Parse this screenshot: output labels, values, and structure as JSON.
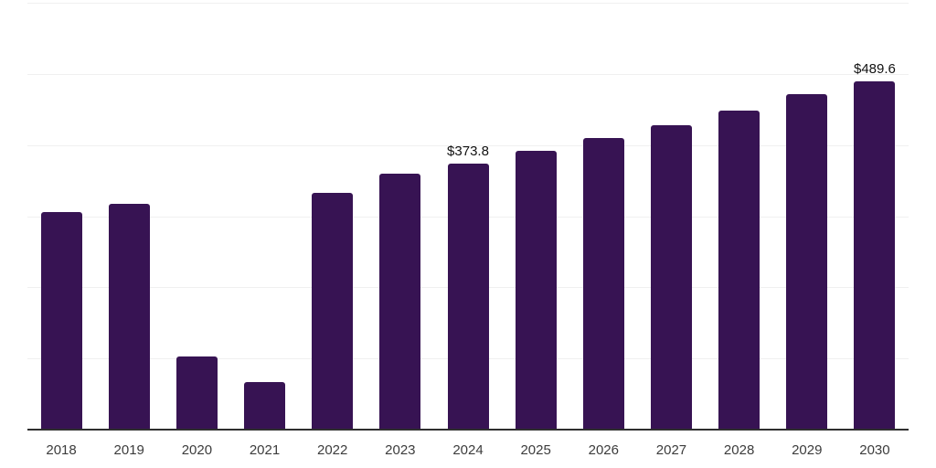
{
  "chart_data": {
    "type": "bar",
    "categories": [
      "2018",
      "2019",
      "2020",
      "2021",
      "2022",
      "2023",
      "2024",
      "2025",
      "2026",
      "2027",
      "2028",
      "2029",
      "2030"
    ],
    "values": [
      306,
      317,
      103,
      67,
      333,
      360,
      373.8,
      392,
      410,
      428,
      449,
      471,
      489.6
    ],
    "bar_labels": [
      "",
      "",
      "",
      "",
      "",
      "",
      "$373.8",
      "",
      "",
      "",
      "",
      "",
      "$489.6"
    ],
    "title": "",
    "xlabel": "",
    "ylabel": "",
    "ylim": [
      0,
      600
    ],
    "gridline_interval": 100,
    "grid": true,
    "legend": false,
    "bar_color": "#371353",
    "axis_color": "#2f2f2f",
    "gridline_color": "#f0f0f0",
    "value_label_color": "#111111",
    "tick_label_color": "#3c3c3c",
    "background_color": "#ffffff"
  }
}
